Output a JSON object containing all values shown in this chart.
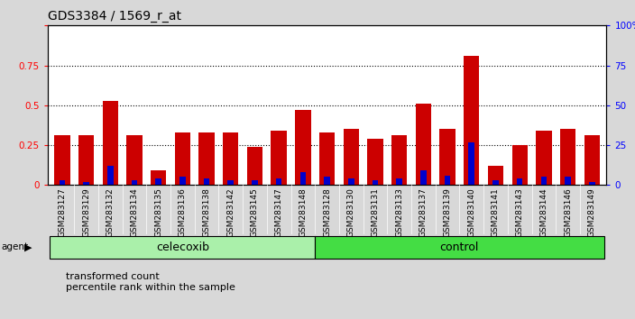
{
  "title": "GDS3384 / 1569_r_at",
  "categories": [
    "GSM283127",
    "GSM283129",
    "GSM283132",
    "GSM283134",
    "GSM283135",
    "GSM283136",
    "GSM283138",
    "GSM283142",
    "GSM283145",
    "GSM283147",
    "GSM283148",
    "GSM283128",
    "GSM283130",
    "GSM283131",
    "GSM283133",
    "GSM283137",
    "GSM283139",
    "GSM283140",
    "GSM283141",
    "GSM283143",
    "GSM283144",
    "GSM283146",
    "GSM283149"
  ],
  "red_values": [
    0.31,
    0.31,
    0.53,
    0.31,
    0.09,
    0.33,
    0.33,
    0.33,
    0.24,
    0.34,
    0.47,
    0.33,
    0.35,
    0.29,
    0.31,
    0.51,
    0.35,
    0.81,
    0.12,
    0.25,
    0.34,
    0.35,
    0.31
  ],
  "blue_values": [
    0.03,
    0.02,
    0.12,
    0.03,
    0.04,
    0.05,
    0.04,
    0.03,
    0.03,
    0.04,
    0.08,
    0.05,
    0.04,
    0.03,
    0.04,
    0.09,
    0.06,
    0.27,
    0.03,
    0.04,
    0.05,
    0.05,
    0.02
  ],
  "group_labels": [
    "celecoxib",
    "control"
  ],
  "group_sizes": [
    11,
    12
  ],
  "celecoxib_color": "#aaf0aa",
  "control_color": "#44dd44",
  "bar_color_red": "#cc0000",
  "bar_color_blue": "#0000cc",
  "agent_label": "agent",
  "legend_red": "transformed count",
  "legend_blue": "percentile rank within the sample",
  "ylim_left": [
    0,
    1.0
  ],
  "ylim_right": [
    0,
    100
  ],
  "yticks_left": [
    0,
    0.25,
    0.5,
    0.75,
    1.0
  ],
  "yticks_right": [
    0,
    25,
    50,
    75,
    100
  ],
  "background_color": "#d8d8d8",
  "plot_bg": "#ffffff"
}
